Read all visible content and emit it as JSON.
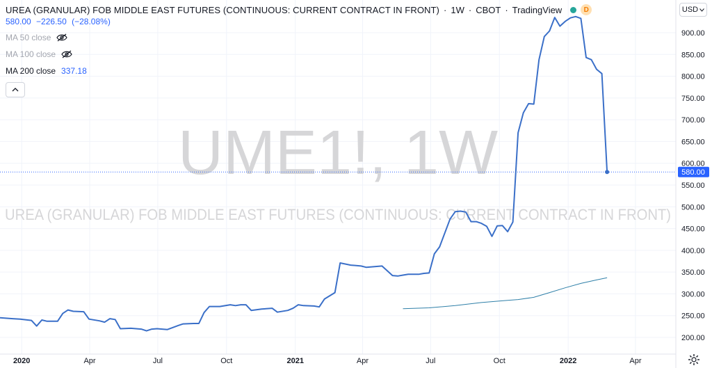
{
  "header": {
    "symbol_title": "UREA (GRANULAR) FOB MIDDLE EAST FUTURES (CONTINUOUS: CURRENT CONTRACT IN FRONT)",
    "interval": "1W",
    "exchange": "CBOT",
    "platform": "TradingView",
    "badge": "D",
    "price": "580.00",
    "change": "−226.50",
    "change_pct": "(−28.08%)",
    "currency_button": "USD"
  },
  "indicators": {
    "ma50": {
      "label": "MA 50 close",
      "hidden": true
    },
    "ma100": {
      "label": "MA 100 close",
      "hidden": true
    },
    "ma200": {
      "label": "MA 200 close",
      "value": "337.18"
    }
  },
  "watermark": {
    "big": "UME1!, 1W",
    "small": "UREA (GRANULAR) FOB MIDDLE EAST FUTURES (CONTINUOUS: CURRENT CONTRACT IN FRONT)"
  },
  "colors": {
    "price_line": "#3a6fc8",
    "ma_line": "#2e7fa8",
    "grid": "#f0f3fa",
    "last_price_label": "#2962ff",
    "watermark": "#d6d6d8"
  },
  "chart_data": {
    "type": "line",
    "y_axis_ticks": [
      200,
      250,
      300,
      350,
      400,
      450,
      500,
      550,
      600,
      650,
      700,
      750,
      800,
      850,
      900
    ],
    "y_range": [
      180,
      935
    ],
    "x_axis_ticks": [
      {
        "date": "2020-01-01",
        "label": "2020"
      },
      {
        "date": "2020-04-01",
        "label": "Apr"
      },
      {
        "date": "2020-07-01",
        "label": "Jul"
      },
      {
        "date": "2020-10-01",
        "label": "Oct"
      },
      {
        "date": "2021-01-01",
        "label": "2021"
      },
      {
        "date": "2021-04-01",
        "label": "Apr"
      },
      {
        "date": "2021-07-01",
        "label": "Jul"
      },
      {
        "date": "2021-10-01",
        "label": "Oct"
      },
      {
        "date": "2022-01-01",
        "label": "2022"
      },
      {
        "date": "2022-04-01",
        "label": "Apr"
      }
    ],
    "x_range": [
      "2019-12-03",
      "2022-05-25"
    ],
    "last_price": 580,
    "series": [
      {
        "role": "price",
        "points": [
          [
            "2019-12-03",
            245
          ],
          [
            "2019-12-20",
            243
          ],
          [
            "2019-12-30",
            242
          ],
          [
            "2020-01-14",
            239
          ],
          [
            "2020-01-21",
            226
          ],
          [
            "2020-01-28",
            240
          ],
          [
            "2020-02-04",
            237
          ],
          [
            "2020-02-18",
            237
          ],
          [
            "2020-02-25",
            255
          ],
          [
            "2020-03-03",
            263
          ],
          [
            "2020-03-10",
            260
          ],
          [
            "2020-03-24",
            259
          ],
          [
            "2020-03-31",
            242
          ],
          [
            "2020-04-14",
            238
          ],
          [
            "2020-04-21",
            235
          ],
          [
            "2020-04-28",
            243
          ],
          [
            "2020-05-05",
            241
          ],
          [
            "2020-05-12",
            220
          ],
          [
            "2020-05-26",
            221
          ],
          [
            "2020-06-09",
            219
          ],
          [
            "2020-06-16",
            215
          ],
          [
            "2020-06-23",
            219
          ],
          [
            "2020-06-30",
            220
          ],
          [
            "2020-07-14",
            218
          ],
          [
            "2020-07-28",
            227
          ],
          [
            "2020-08-04",
            231
          ],
          [
            "2020-08-18",
            232
          ],
          [
            "2020-08-25",
            232
          ],
          [
            "2020-09-01",
            257
          ],
          [
            "2020-09-08",
            271
          ],
          [
            "2020-09-22",
            271
          ],
          [
            "2020-10-06",
            275
          ],
          [
            "2020-10-13",
            273
          ],
          [
            "2020-10-20",
            275
          ],
          [
            "2020-10-27",
            275
          ],
          [
            "2020-11-03",
            262
          ],
          [
            "2020-11-17",
            265
          ],
          [
            "2020-12-01",
            267
          ],
          [
            "2020-12-08",
            258
          ],
          [
            "2020-12-22",
            262
          ],
          [
            "2020-12-29",
            267
          ],
          [
            "2021-01-05",
            275
          ],
          [
            "2021-01-12",
            273
          ],
          [
            "2021-01-26",
            272
          ],
          [
            "2021-02-02",
            270
          ],
          [
            "2021-02-09",
            288
          ],
          [
            "2021-02-23",
            303
          ],
          [
            "2021-03-02",
            371
          ],
          [
            "2021-03-16",
            366
          ],
          [
            "2021-03-30",
            364
          ],
          [
            "2021-04-06",
            361
          ],
          [
            "2021-04-13",
            362
          ],
          [
            "2021-04-27",
            364
          ],
          [
            "2021-05-11",
            342
          ],
          [
            "2021-05-18",
            341
          ],
          [
            "2021-05-25",
            343
          ],
          [
            "2021-06-01",
            345
          ],
          [
            "2021-06-15",
            345
          ],
          [
            "2021-06-22",
            347
          ],
          [
            "2021-06-29",
            348
          ],
          [
            "2021-07-06",
            392
          ],
          [
            "2021-07-13",
            408
          ],
          [
            "2021-07-27",
            472
          ],
          [
            "2021-08-03",
            489
          ],
          [
            "2021-08-10",
            490
          ],
          [
            "2021-08-17",
            488
          ],
          [
            "2021-08-24",
            466
          ],
          [
            "2021-08-31",
            466
          ],
          [
            "2021-09-07",
            462
          ],
          [
            "2021-09-14",
            455
          ],
          [
            "2021-09-21",
            432
          ],
          [
            "2021-09-28",
            456
          ],
          [
            "2021-10-05",
            457
          ],
          [
            "2021-10-12",
            443
          ],
          [
            "2021-10-19",
            465
          ],
          [
            "2021-10-26",
            670
          ],
          [
            "2021-11-02",
            716
          ],
          [
            "2021-11-09",
            737
          ],
          [
            "2021-11-16",
            736
          ],
          [
            "2021-11-23",
            838
          ],
          [
            "2021-11-30",
            891
          ],
          [
            "2021-12-07",
            904
          ],
          [
            "2021-12-14",
            935
          ],
          [
            "2021-12-21",
            915
          ],
          [
            "2021-12-28",
            926
          ],
          [
            "2022-01-04",
            934
          ],
          [
            "2022-01-11",
            937
          ],
          [
            "2022-01-18",
            933
          ],
          [
            "2022-01-25",
            843
          ],
          [
            "2022-02-01",
            838
          ],
          [
            "2022-02-08",
            816
          ],
          [
            "2022-02-15",
            806
          ],
          [
            "2022-02-22",
            580
          ]
        ]
      },
      {
        "role": "ma200",
        "points": [
          [
            "2021-05-25",
            266
          ],
          [
            "2021-06-29",
            268
          ],
          [
            "2021-08-03",
            273
          ],
          [
            "2021-09-07",
            280
          ],
          [
            "2021-10-12",
            285
          ],
          [
            "2021-10-26",
            287
          ],
          [
            "2021-11-16",
            292
          ],
          [
            "2021-12-07",
            303
          ],
          [
            "2021-12-28",
            314
          ],
          [
            "2022-01-18",
            324
          ],
          [
            "2022-02-08",
            332
          ],
          [
            "2022-02-22",
            337
          ]
        ]
      }
    ]
  }
}
